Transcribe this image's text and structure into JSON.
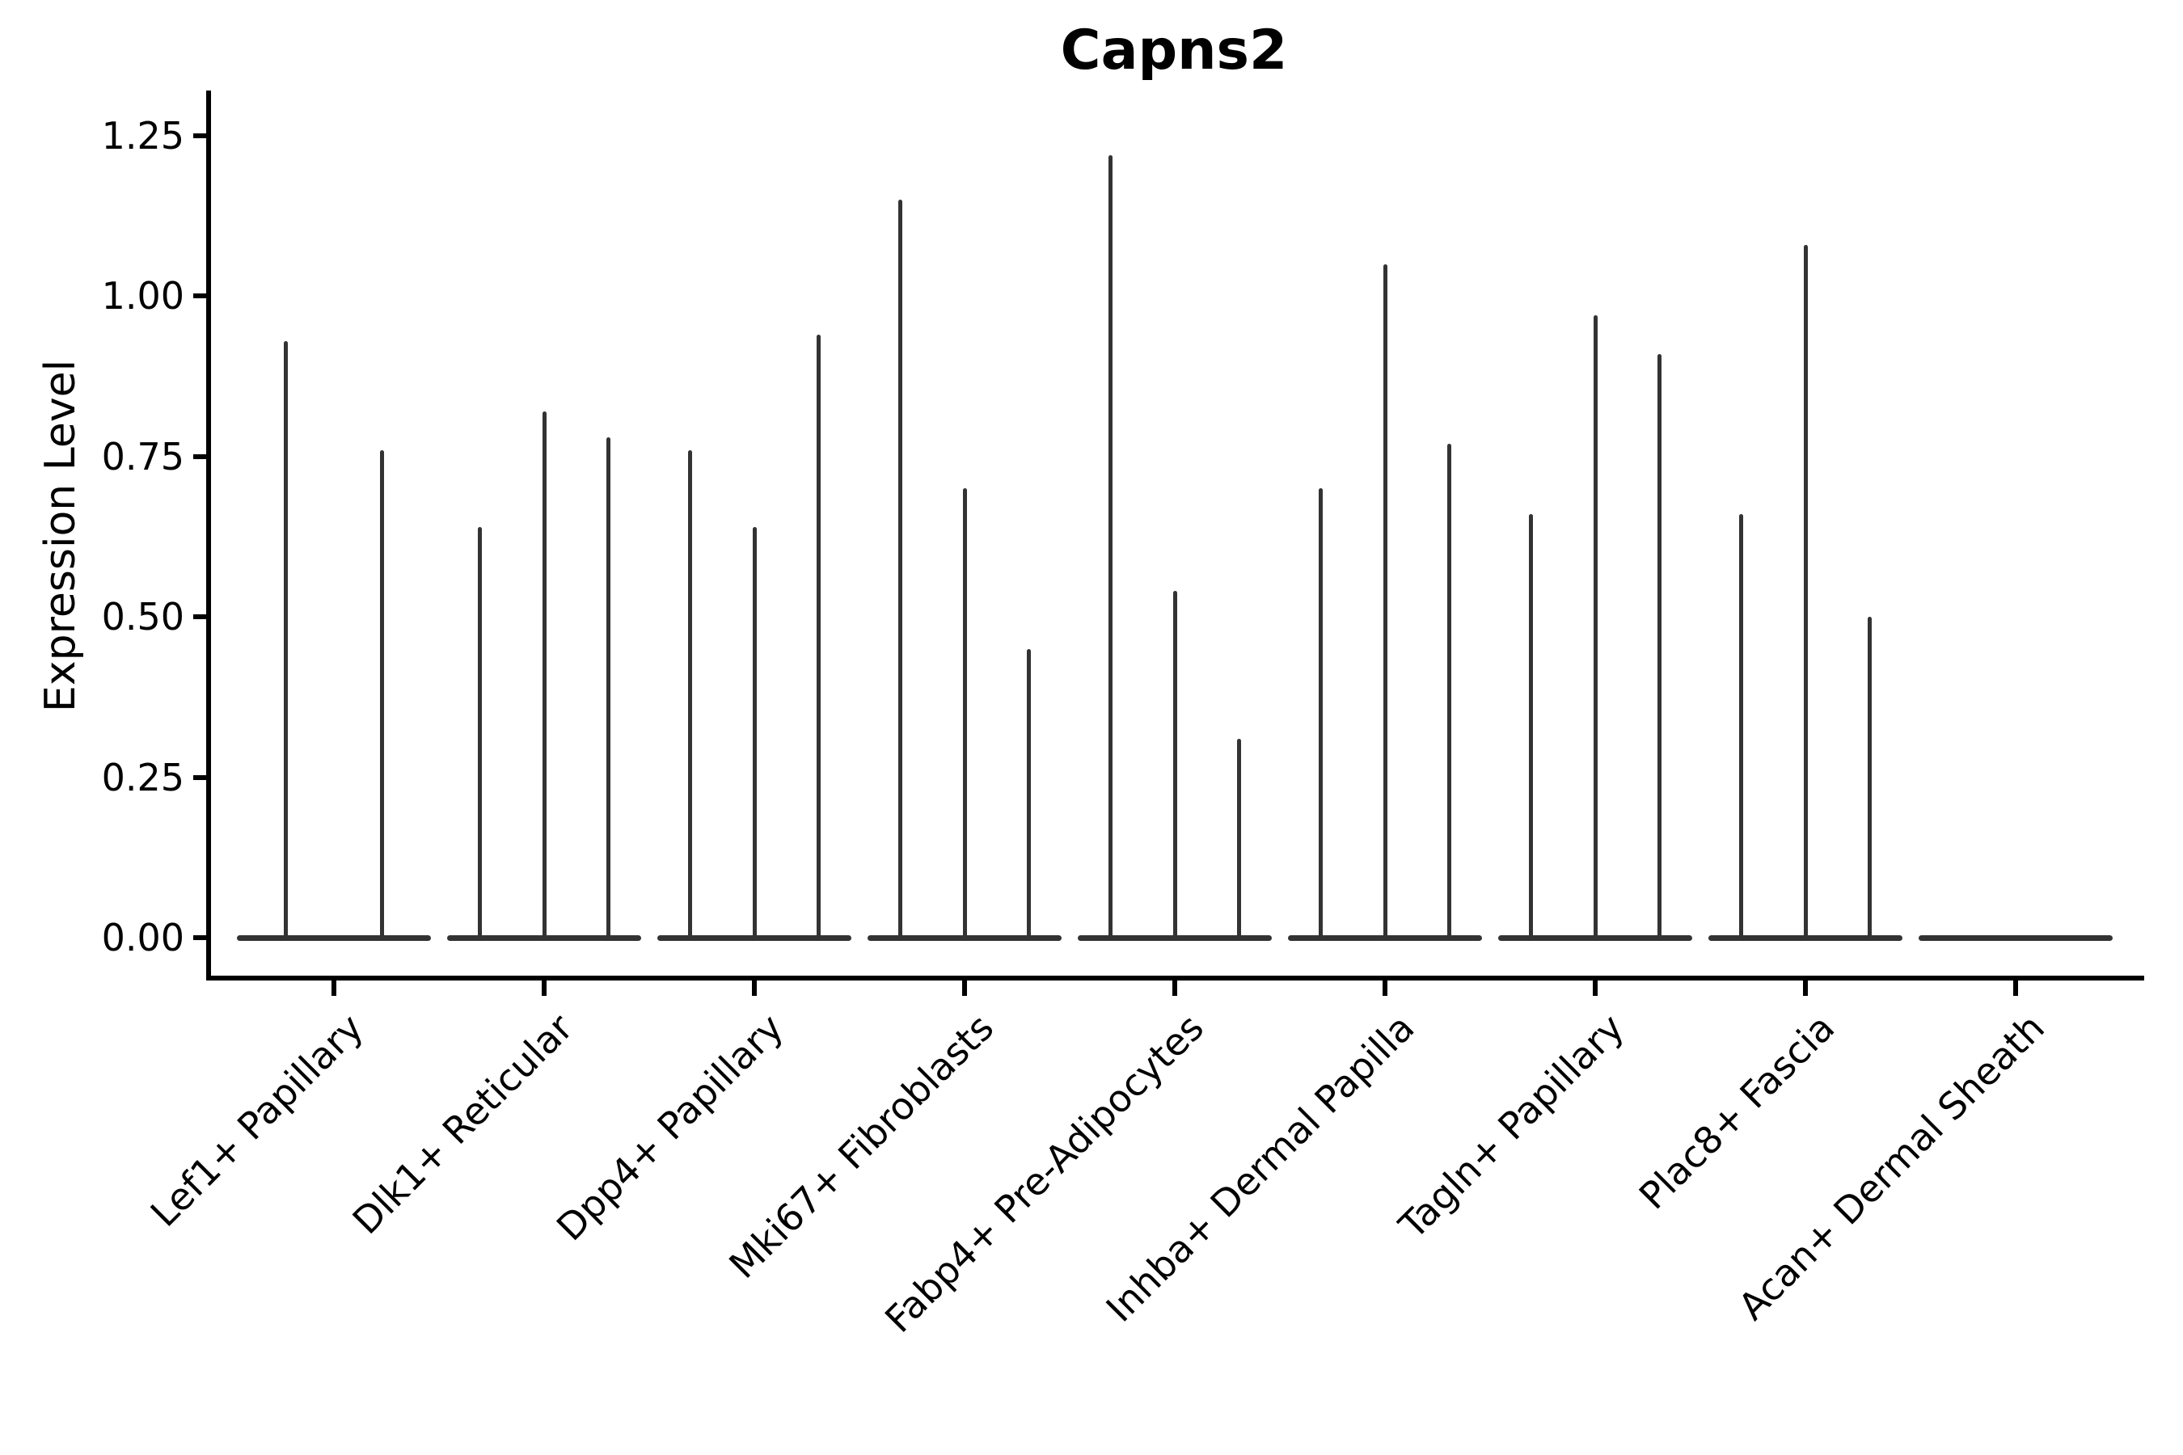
{
  "title": "Capns2",
  "ylabel": "Expression Level",
  "colors": {
    "violin": "#333333",
    "axis": "#000000",
    "text": "#000000",
    "background": "#ffffff"
  },
  "chart_data": {
    "type": "violin",
    "title": "Capns2",
    "xlabel": "",
    "ylabel": "Expression Level",
    "ylim": [
      0,
      1.25
    ],
    "yticks": [
      0.0,
      0.25,
      0.5,
      0.75,
      1.0,
      1.25
    ],
    "ytick_labels": [
      "0.00",
      "0.25",
      "0.50",
      "0.75",
      "1.00",
      "1.25"
    ],
    "grid": false,
    "legend_position": "none",
    "spines": [
      "left",
      "bottom"
    ],
    "xtick_rotation": 45,
    "description": "Each category shows 2-3 extremely thin spike-shaped violins (data massed at 0 with a thin density tail up to the max value); each category has a flat violin-body baseline at y=0.",
    "categories": [
      "Lef1+ Papillary",
      "Dlk1+ Reticular",
      "Dpp4+ Papillary",
      "Mki67+ Fibroblasts",
      "Fabp4+ Pre-Adipocytes",
      "Inhba+ Dermal Papilla",
      "Tagln+ Papillary",
      "Plac8+ Fascia",
      "Acan+ Dermal Sheath"
    ],
    "series": [
      {
        "category": "Lef1+ Papillary",
        "violin_max_values": [
          0.93,
          0.76
        ],
        "baseline_value": 0
      },
      {
        "category": "Dlk1+ Reticular",
        "violin_max_values": [
          0.64,
          0.82,
          0.78
        ],
        "baseline_value": 0
      },
      {
        "category": "Dpp4+ Papillary",
        "violin_max_values": [
          0.76,
          0.64,
          0.94
        ],
        "baseline_value": 0
      },
      {
        "category": "Mki67+ Fibroblasts",
        "violin_max_values": [
          1.15,
          0.7,
          0.45
        ],
        "baseline_value": 0
      },
      {
        "category": "Fabp4+ Pre-Adipocytes",
        "violin_max_values": [
          1.22,
          0.54,
          0.31
        ],
        "baseline_value": 0
      },
      {
        "category": "Inhba+ Dermal Papilla",
        "violin_max_values": [
          0.7,
          1.05,
          0.77
        ],
        "baseline_value": 0
      },
      {
        "category": "Tagln+ Papillary",
        "violin_max_values": [
          0.66,
          0.97,
          0.91
        ],
        "baseline_value": 0
      },
      {
        "category": "Plac8+ Fascia",
        "violin_max_values": [
          0.66,
          1.08,
          0.5
        ],
        "baseline_value": 0
      },
      {
        "category": "Acan+ Dermal Sheath",
        "violin_max_values": [],
        "baseline_value": 0
      }
    ]
  }
}
